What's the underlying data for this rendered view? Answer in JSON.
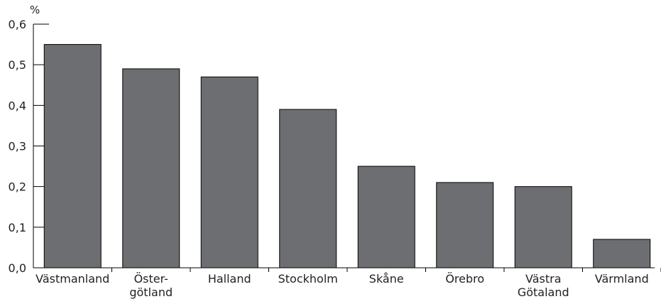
{
  "chart_data": {
    "type": "bar",
    "ylabel": "%",
    "ylim": [
      0,
      0.6
    ],
    "yticks": [
      "0,0",
      "0,1",
      "0,2",
      "0,3",
      "0,4",
      "0,5",
      "0,6"
    ],
    "categories": [
      [
        "Västmanland"
      ],
      [
        "Öster-",
        "götland"
      ],
      [
        "Halland"
      ],
      [
        "Stockholm"
      ],
      [
        "Skåne"
      ],
      [
        "Örebro"
      ],
      [
        "Västra",
        "Götaland"
      ],
      [
        "Värmland"
      ]
    ],
    "values": [
      0.55,
      0.49,
      0.47,
      0.39,
      0.25,
      0.21,
      0.2,
      0.07
    ],
    "grid": false,
    "bar_color": "#6d6e71",
    "bar_stroke": "#000000"
  }
}
